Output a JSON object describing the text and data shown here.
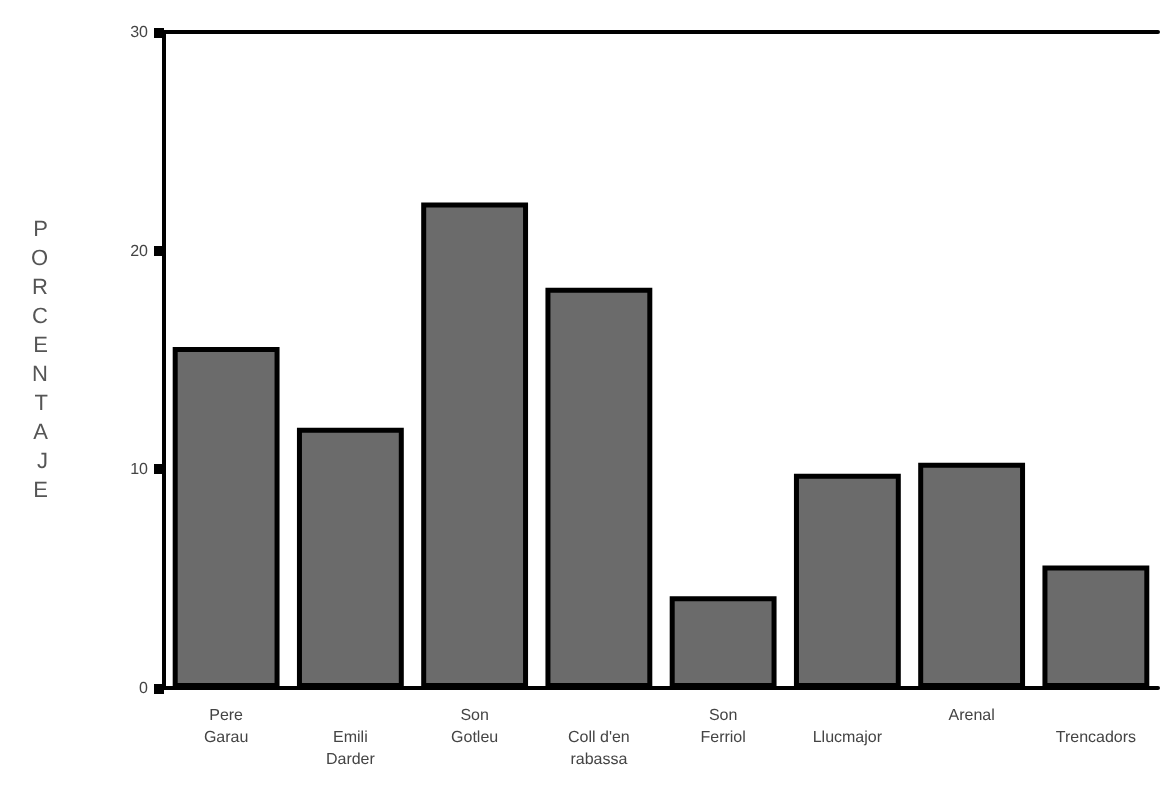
{
  "chart_data": {
    "type": "bar",
    "ylabel": "PORCENTAJE",
    "categories": [
      "Pere Garau",
      "Emili Darder",
      "Son Gotleu",
      "Coll d'en rabassa",
      "Son Ferriol",
      "Llucmajor",
      "Arenal",
      "Trencadors"
    ],
    "values": [
      15.6,
      11.9,
      22.2,
      18.3,
      4.2,
      9.8,
      10.3,
      5.6
    ],
    "color": "#6b6b6b",
    "ylim": [
      0,
      30
    ],
    "yticks": [
      0,
      10,
      20,
      30
    ],
    "grid": false
  }
}
